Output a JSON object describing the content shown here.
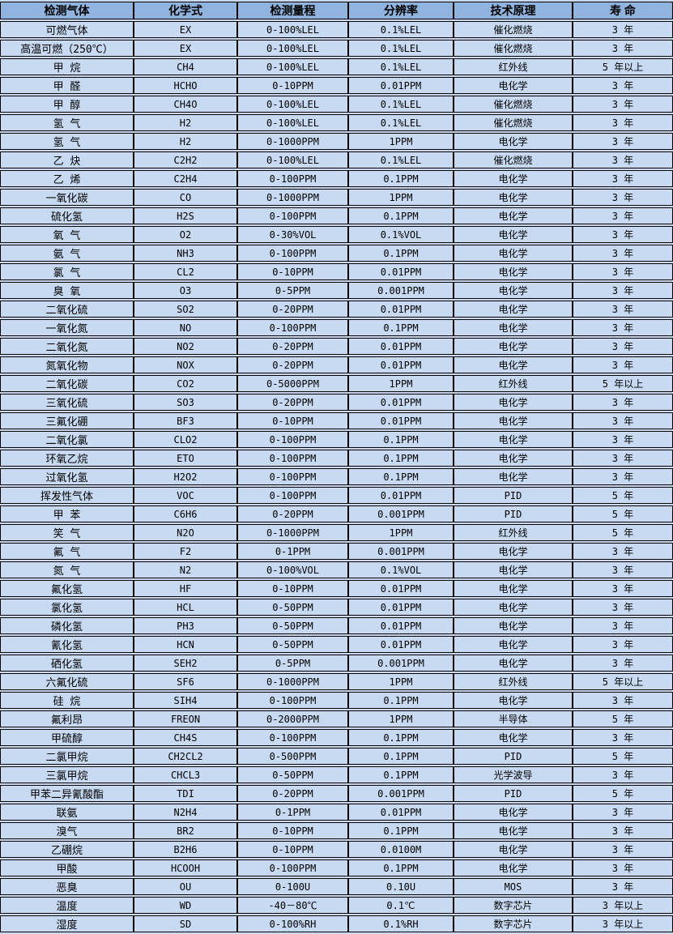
{
  "table": {
    "colors": {
      "header_bg": "#90b4de",
      "row_bg": "#c7daf2",
      "border": "#000000",
      "text": "#000000"
    },
    "columns": [
      "检测气体",
      "化学式",
      "检测量程",
      "分辨率",
      "技术原理",
      "寿 命"
    ],
    "rows": [
      [
        "可燃气体",
        "EX",
        "0-100%LEL",
        "0.1%LEL",
        "催化燃烧",
        "3 年"
      ],
      [
        "高温可燃（250℃）",
        "EX",
        "0-100%LEL",
        "0.1%LEL",
        "催化燃烧",
        "3 年"
      ],
      [
        "甲 烷",
        "CH4",
        "0-100%LEL",
        "0.1%LEL",
        "红外线",
        "5 年以上"
      ],
      [
        "甲 醛",
        "HCHO",
        "0-10PPM",
        "0.01PPM",
        "电化学",
        "3 年"
      ],
      [
        "甲 醇",
        "CH4O",
        "0-100%LEL",
        "0.1%LEL",
        "催化燃烧",
        "3 年"
      ],
      [
        "氢 气",
        "H2",
        "0-100%LEL",
        "0.1%LEL",
        "催化燃烧",
        "3 年"
      ],
      [
        "氢 气",
        "H2",
        "0-1000PPM",
        "1PPM",
        "电化学",
        "3 年"
      ],
      [
        "乙 炔",
        "C2H2",
        "0-100%LEL",
        "0.1%LEL",
        "催化燃烧",
        "3 年"
      ],
      [
        "乙 烯",
        "C2H4",
        "0-100PPM",
        "0.1PPM",
        "电化学",
        "3 年"
      ],
      [
        "一氧化碳",
        "CO",
        "0-1000PPM",
        "1PPM",
        "电化学",
        "3 年"
      ],
      [
        "硫化氢",
        "H2S",
        "0-100PPM",
        "0.1PPM",
        "电化学",
        "3 年"
      ],
      [
        "氧 气",
        "O2",
        "0-30%VOL",
        "0.1%VOL",
        "电化学",
        "3 年"
      ],
      [
        "氨 气",
        "NH3",
        "0-100PPM",
        "0.1PPM",
        "电化学",
        "3 年"
      ],
      [
        "氯 气",
        "CL2",
        "0-10PPM",
        "0.01PPM",
        "电化学",
        "3 年"
      ],
      [
        "臭 氧",
        "O3",
        "0-5PPM",
        "0.001PPM",
        "电化学",
        "3 年"
      ],
      [
        "二氧化硫",
        "SO2",
        "0-20PPM",
        "0.01PPM",
        "电化学",
        "3 年"
      ],
      [
        "一氧化氮",
        "NO",
        "0-100PPM",
        "0.1PPM",
        "电化学",
        "3 年"
      ],
      [
        "二氧化氮",
        "NO2",
        "0-20PPM",
        "0.01PPM",
        "电化学",
        "3 年"
      ],
      [
        "氮氧化物",
        "NOX",
        "0-20PPM",
        "0.01PPM",
        "电化学",
        "3 年"
      ],
      [
        "二氧化碳",
        "CO2",
        "0-5000PPM",
        "1PPM",
        "红外线",
        "5 年以上"
      ],
      [
        "三氧化硫",
        "SO3",
        "0-20PPM",
        "0.01PPM",
        "电化学",
        "3 年"
      ],
      [
        "三氟化硼",
        "BF3",
        "0-10PPM",
        "0.01PPM",
        "电化学",
        "3 年"
      ],
      [
        "二氧化氯",
        "CLO2",
        "0-100PPM",
        "0.1PPM",
        "电化学",
        "3 年"
      ],
      [
        "环氧乙烷",
        "ETO",
        "0-100PPM",
        "0.1PPM",
        "电化学",
        "3 年"
      ],
      [
        "过氧化氢",
        "H2O2",
        "0-100PPM",
        "0.1PPM",
        "电化学",
        "3 年"
      ],
      [
        "挥发性气体",
        "VOC",
        "0-100PPM",
        "0.01PPM",
        "PID",
        "5 年"
      ],
      [
        "甲 苯",
        "C6H6",
        "0-20PPM",
        "0.001PPM",
        "PID",
        "5 年"
      ],
      [
        "笑 气",
        "N2O",
        "0-1000PPM",
        "1PPM",
        "红外线",
        "5 年"
      ],
      [
        "氟 气",
        "F2",
        "0-1PPM",
        "0.001PPM",
        "电化学",
        "3 年"
      ],
      [
        "氮 气",
        "N2",
        "0-100%VOL",
        "0.1%VOL",
        "电化学",
        "3 年"
      ],
      [
        "氟化氢",
        "HF",
        "0-10PPM",
        "0.01PPM",
        "电化学",
        "3 年"
      ],
      [
        "氯化氢",
        "HCL",
        "0-50PPM",
        "0.01PPM",
        "电化学",
        "3 年"
      ],
      [
        "磷化氢",
        "PH3",
        "0-50PPM",
        "0.01PPM",
        "电化学",
        "3 年"
      ],
      [
        "氰化氢",
        "HCN",
        "0-50PPM",
        "0.01PPM",
        "电化学",
        "3 年"
      ],
      [
        "硒化氢",
        "SEH2",
        "0-5PPM",
        "0.001PPM",
        "电化学",
        "3 年"
      ],
      [
        "六氟化硫",
        "SF6",
        "0-1000PPM",
        "1PPM",
        "红外线",
        "5 年以上"
      ],
      [
        "硅 烷",
        "SIH4",
        "0-100PPM",
        "0.1PPM",
        "电化学",
        "3 年"
      ],
      [
        "氟利昂",
        "FREON",
        "0-2000PPM",
        "1PPM",
        "半导体",
        "5 年"
      ],
      [
        "甲硫醇",
        "CH4S",
        "0-100PPM",
        "0.1PPM",
        "电化学",
        "3 年"
      ],
      [
        "二氯甲烷",
        "CH2CL2",
        "0-500PPM",
        "0.1PPM",
        "PID",
        "5 年"
      ],
      [
        "三氯甲烷",
        "CHCL3",
        "0-50PPM",
        "0.1PPM",
        "光学波导",
        "3 年"
      ],
      [
        "甲苯二异氰酸酯",
        "TDI",
        "0-20PPM",
        "0.001PPM",
        "PID",
        "5 年"
      ],
      [
        "联氨",
        "N2H4",
        "0-1PPM",
        "0.01PPM",
        "电化学",
        "3 年"
      ],
      [
        "溴气",
        "BR2",
        "0-10PPM",
        "0.1PPM",
        "电化学",
        "3 年"
      ],
      [
        "乙硼烷",
        "B2H6",
        "0-10PPM",
        "0.0100M",
        "电化学",
        "3 年"
      ],
      [
        "甲酸",
        "HCOOH",
        "0-100PPM",
        "0.1PPM",
        "电化学",
        "3 年"
      ],
      [
        "恶臭",
        "OU",
        "0-100U",
        "0.10U",
        "MOS",
        "3 年"
      ],
      [
        "温度",
        "WD",
        "-40－80℃",
        "0.1℃",
        "数字芯片",
        "3 年以上"
      ],
      [
        "湿度",
        "SD",
        "0-100%RH",
        "0.1%RH",
        "数字芯片",
        "3 年以上"
      ]
    ]
  }
}
